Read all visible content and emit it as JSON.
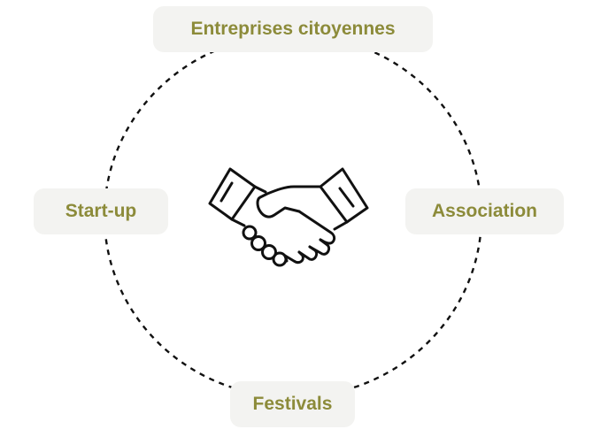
{
  "diagram": {
    "nodes": {
      "top": "Entreprises citoyennes",
      "left": "Start-up",
      "right": "Association",
      "bottom": "Festivals"
    },
    "center_icon": "handshake-icon",
    "colors": {
      "label_text": "#8c8b3a",
      "pill_background": "#f3f3f1",
      "ring_stroke": "#111111"
    }
  }
}
